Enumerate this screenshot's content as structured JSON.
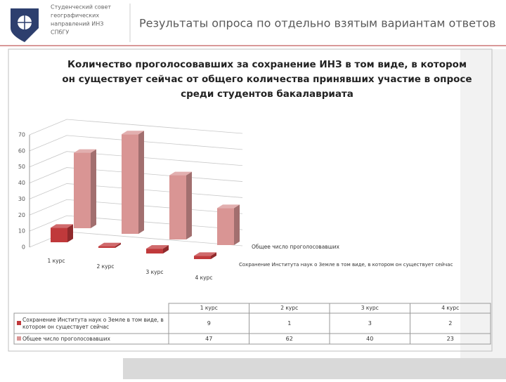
{
  "header": {
    "org_lines": [
      "Студенческий совет",
      "географических",
      "направлений ИНЗ",
      "СПбГУ"
    ],
    "title": "Результаты опроса по отдельно взятым вариантам ответов"
  },
  "chart_data": {
    "type": "bar3d",
    "title": [
      "Количество проголосовавших за сохранение ИНЗ в том виде, в котором",
      "он существует сейчас от общего количества принявших участие в опросе",
      "среди студентов бакалавриата"
    ],
    "categories": [
      "1 курс",
      "2 курс",
      "3 курс",
      "4 курс"
    ],
    "series": [
      {
        "name": "Сохранение Института наук о Земле в том виде, в котором он существует сейчас",
        "color": "#c0393b",
        "values": [
          9,
          1,
          3,
          2
        ]
      },
      {
        "name": "Общее число проголосовавших",
        "color": "#d99594",
        "values": [
          47,
          62,
          40,
          23
        ]
      }
    ],
    "ylim": [
      0,
      70
    ],
    "yticks": [
      0,
      10,
      20,
      30,
      40,
      50,
      60,
      70
    ],
    "grid": true
  }
}
